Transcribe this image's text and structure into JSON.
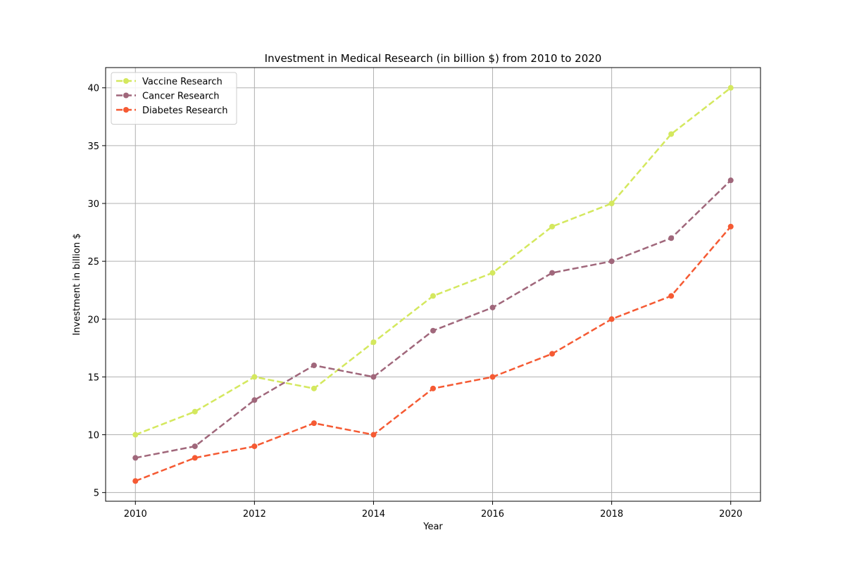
{
  "chart_data": {
    "type": "line",
    "title": "Investment in Medical Research (in billion $) from 2010 to 2020",
    "xlabel": "Year",
    "ylabel": "Investment in billion $",
    "x": [
      2010,
      2011,
      2012,
      2013,
      2014,
      2015,
      2016,
      2017,
      2018,
      2019,
      2020
    ],
    "xlim": [
      2009.5,
      2020.5
    ],
    "ylim": [
      4.25,
      41.75
    ],
    "xticks": [
      2010,
      2012,
      2014,
      2016,
      2018,
      2020
    ],
    "xtick_labels": [
      "2010",
      "2012",
      "2014",
      "2016",
      "2018",
      "2020"
    ],
    "yticks": [
      5,
      10,
      15,
      20,
      25,
      30,
      35,
      40
    ],
    "ytick_labels": [
      "5",
      "10",
      "15",
      "20",
      "25",
      "30",
      "35",
      "40"
    ],
    "grid": true,
    "legend_position": "top-left",
    "line_style": "dashed",
    "marker": "circle",
    "series": [
      {
        "name": "Vaccine Research",
        "color": "#d4e85e",
        "values": [
          10,
          12,
          15,
          14,
          18,
          22,
          24,
          28,
          30,
          36,
          40
        ]
      },
      {
        "name": "Cancer Research",
        "color": "#a0677b",
        "values": [
          8,
          9,
          13,
          16,
          15,
          19,
          21,
          24,
          25,
          27,
          32
        ]
      },
      {
        "name": "Diabetes Research",
        "color": "#f55a33",
        "values": [
          6,
          8,
          9,
          11,
          10,
          14,
          15,
          17,
          20,
          22,
          28
        ]
      }
    ]
  }
}
